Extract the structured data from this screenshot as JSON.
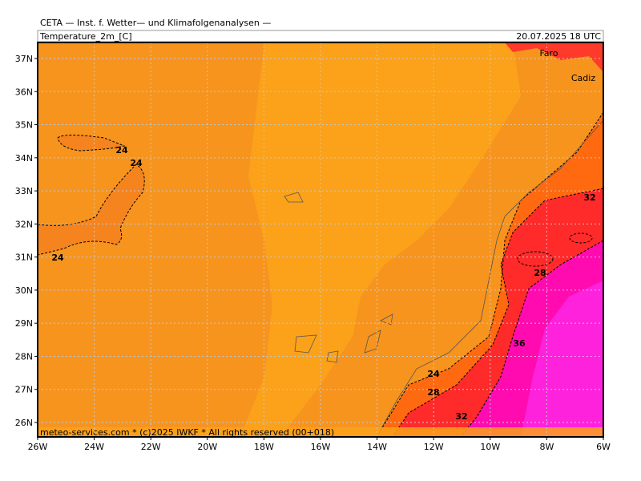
{
  "header": {
    "title": "CETA — Inst. f. Wetter— und Klimafolgenanalysen —",
    "variable": "Temperature_2m_[C]",
    "datetime": "20.07.2025  18 UTC"
  },
  "footer": "meteo-services.com * (c)2025 IWKF * All rights reserved (00+018)",
  "places": [
    "Faro",
    "Cadiz"
  ],
  "lat_labels": [
    "37N",
    "36N",
    "35N",
    "34N",
    "33N",
    "32N",
    "31N",
    "30N",
    "29N",
    "28N",
    "27N",
    "26N"
  ],
  "lon_labels": [
    "26W",
    "24W",
    "22W",
    "20W",
    "18W",
    "16W",
    "14W",
    "12W",
    "10W",
    "8W",
    "6W"
  ],
  "contour_labels": [
    "24",
    "24",
    "24",
    "32",
    "28",
    "36",
    "24",
    "28",
    "32"
  ]
}
